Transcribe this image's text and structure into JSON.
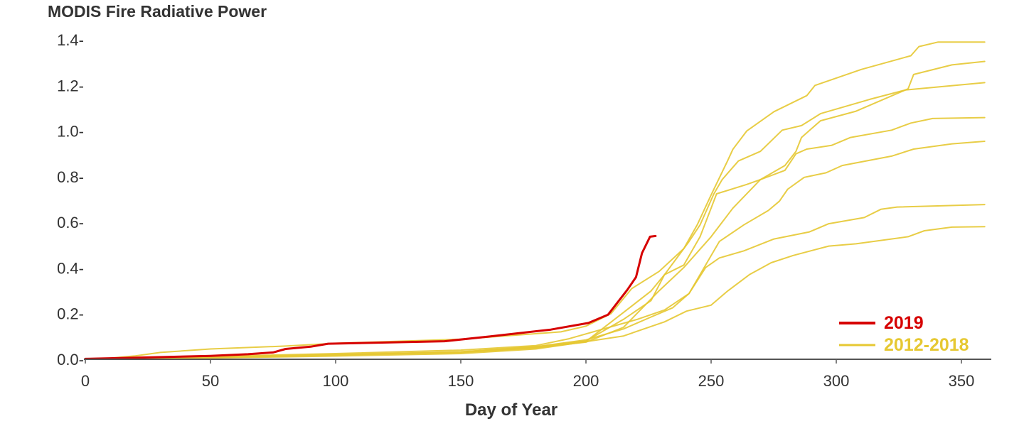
{
  "chart_data": {
    "type": "line",
    "title": "MODIS Fire Radiative Power",
    "xlabel": "Day of Year",
    "ylabel": "",
    "xlim": [
      0,
      362
    ],
    "ylim": [
      0,
      1.4
    ],
    "grid": false,
    "legend_position": "bottom-right",
    "x_ticks": [
      0,
      50,
      100,
      150,
      200,
      250,
      300,
      350
    ],
    "x_tick_labels": [
      "0",
      "50",
      "100",
      "150",
      "200",
      "250",
      "300",
      "350"
    ],
    "y_ticks": [
      0,
      0.2,
      0.4,
      0.6,
      0.8,
      1.0,
      1.2,
      1.4
    ],
    "y_tick_labels": [
      "0.0-",
      "0.2-",
      "0.4-",
      "0.6-",
      "0.8-",
      "1.0-",
      "1.2-",
      "1.4-"
    ],
    "colors": {
      "2019": "#d60000",
      "2012-2018": "#e6c832",
      "axis": "#555555",
      "text": "#333333"
    },
    "legend": [
      {
        "label": "2019",
        "color_key": "2019"
      },
      {
        "label": "2012-2018",
        "color_key": "2012-2018"
      }
    ],
    "series": [
      {
        "name": "2012-2018 A",
        "group": "2012-2018",
        "points": [
          [
            0,
            0
          ],
          [
            10,
            0.005
          ],
          [
            20,
            0.015
          ],
          [
            30,
            0.03
          ],
          [
            50,
            0.045
          ],
          [
            80,
            0.058
          ],
          [
            100,
            0.07
          ],
          [
            150,
            0.088
          ],
          [
            190,
            0.12
          ],
          [
            200,
            0.145
          ],
          [
            210,
            0.2
          ],
          [
            218.3,
            0.31
          ],
          [
            229.2,
            0.385
          ],
          [
            239.1,
            0.485
          ],
          [
            244.5,
            0.59
          ],
          [
            250,
            0.72
          ],
          [
            256.6,
            0.87
          ],
          [
            258.7,
            0.92
          ],
          [
            264.2,
            1.0
          ],
          [
            275.1,
            1.085
          ],
          [
            288.2,
            1.155
          ],
          [
            291.5,
            1.2
          ],
          [
            310,
            1.27
          ],
          [
            329.8,
            1.33
          ],
          [
            333,
            1.37
          ],
          [
            340.7,
            1.39
          ],
          [
            359.3,
            1.39
          ]
        ]
      },
      {
        "name": "2012-2018 B",
        "group": "2012-2018",
        "points": [
          [
            0,
            0
          ],
          [
            50,
            0.008
          ],
          [
            100,
            0.018
          ],
          [
            150,
            0.03
          ],
          [
            180,
            0.05
          ],
          [
            200,
            0.075
          ],
          [
            215,
            0.14
          ],
          [
            229.2,
            0.3
          ],
          [
            239.1,
            0.402
          ],
          [
            250,
            0.537
          ],
          [
            258.7,
            0.662
          ],
          [
            269.7,
            0.787
          ],
          [
            279.5,
            0.849
          ],
          [
            283.9,
            0.911
          ],
          [
            286.1,
            0.972
          ],
          [
            293.7,
            1.045
          ],
          [
            307.9,
            1.087
          ],
          [
            328.7,
            1.185
          ],
          [
            330.9,
            1.248
          ],
          [
            346.2,
            1.29
          ],
          [
            359.3,
            1.305
          ]
        ]
      },
      {
        "name": "2012-2018 C",
        "group": "2012-2018",
        "points": [
          [
            0,
            0
          ],
          [
            50,
            0.01
          ],
          [
            100,
            0.02
          ],
          [
            150,
            0.032
          ],
          [
            180,
            0.055
          ],
          [
            200,
            0.08
          ],
          [
            215,
            0.175
          ],
          [
            226,
            0.257
          ],
          [
            231.4,
            0.371
          ],
          [
            241.2,
            0.516
          ],
          [
            245.6,
            0.589
          ],
          [
            251.1,
            0.725
          ],
          [
            254.4,
            0.787
          ],
          [
            260.9,
            0.869
          ],
          [
            269.7,
            0.911
          ],
          [
            278.4,
            1.004
          ],
          [
            286.1,
            1.024
          ],
          [
            293.7,
            1.076
          ],
          [
            313.4,
            1.139
          ],
          [
            327.6,
            1.18
          ],
          [
            359.3,
            1.212
          ]
        ]
      },
      {
        "name": "2012-2018 D",
        "group": "2012-2018",
        "points": [
          [
            0,
            0
          ],
          [
            50,
            0.009
          ],
          [
            100,
            0.019
          ],
          [
            150,
            0.03
          ],
          [
            180,
            0.05
          ],
          [
            200,
            0.078
          ],
          [
            215,
            0.205
          ],
          [
            226,
            0.299
          ],
          [
            231.4,
            0.371
          ],
          [
            239.1,
            0.413
          ],
          [
            245.6,
            0.537
          ],
          [
            250,
            0.662
          ],
          [
            252.2,
            0.725
          ],
          [
            264.2,
            0.766
          ],
          [
            269.7,
            0.787
          ],
          [
            279.5,
            0.828
          ],
          [
            283.9,
            0.9
          ],
          [
            288.2,
            0.921
          ],
          [
            298.1,
            0.937
          ],
          [
            305.7,
            0.972
          ],
          [
            322.1,
            1.004
          ],
          [
            329.8,
            1.035
          ],
          [
            338.5,
            1.055
          ],
          [
            359.3,
            1.059
          ]
        ]
      },
      {
        "name": "2012-2018 E",
        "group": "2012-2018",
        "points": [
          [
            0,
            0
          ],
          [
            50,
            0.012
          ],
          [
            100,
            0.025
          ],
          [
            150,
            0.04
          ],
          [
            180,
            0.06
          ],
          [
            193.2,
            0.09
          ],
          [
            220.5,
            0.175
          ],
          [
            231.4,
            0.216
          ],
          [
            241.2,
            0.288
          ],
          [
            247.8,
            0.413
          ],
          [
            253.3,
            0.516
          ],
          [
            263.1,
            0.589
          ],
          [
            272.9,
            0.652
          ],
          [
            277.3,
            0.693
          ],
          [
            280.6,
            0.745
          ],
          [
            287.2,
            0.797
          ],
          [
            295.9,
            0.817
          ],
          [
            302.4,
            0.849
          ],
          [
            322.1,
            0.89
          ],
          [
            330.9,
            0.921
          ],
          [
            346.2,
            0.944
          ],
          [
            359.3,
            0.955
          ]
        ]
      },
      {
        "name": "2012-2018 F",
        "group": "2012-2018",
        "points": [
          [
            0,
            0
          ],
          [
            50,
            0.01
          ],
          [
            100,
            0.02
          ],
          [
            150,
            0.033
          ],
          [
            180,
            0.055
          ],
          [
            200,
            0.085
          ],
          [
            215,
            0.133
          ],
          [
            226,
            0.185
          ],
          [
            234.7,
            0.226
          ],
          [
            241.2,
            0.288
          ],
          [
            247.8,
            0.402
          ],
          [
            253.3,
            0.444
          ],
          [
            263.1,
            0.475
          ],
          [
            275.1,
            0.527
          ],
          [
            289.3,
            0.558
          ],
          [
            297,
            0.594
          ],
          [
            311.2,
            0.621
          ],
          [
            317.8,
            0.657
          ],
          [
            324.3,
            0.667
          ],
          [
            359.3,
            0.678
          ]
        ]
      },
      {
        "name": "2012-2018 G",
        "group": "2012-2018",
        "points": [
          [
            0,
            0
          ],
          [
            50,
            0.006
          ],
          [
            100,
            0.014
          ],
          [
            150,
            0.025
          ],
          [
            180,
            0.045
          ],
          [
            193.2,
            0.066
          ],
          [
            215,
            0.102
          ],
          [
            231.4,
            0.164
          ],
          [
            240.2,
            0.211
          ],
          [
            250,
            0.237
          ],
          [
            256.6,
            0.299
          ],
          [
            265.3,
            0.371
          ],
          [
            274,
            0.423
          ],
          [
            282.8,
            0.455
          ],
          [
            297,
            0.496
          ],
          [
            307.9,
            0.506
          ],
          [
            328.7,
            0.537
          ],
          [
            335.2,
            0.563
          ],
          [
            346.2,
            0.579
          ],
          [
            359.3,
            0.581
          ]
        ]
      },
      {
        "name": "2019",
        "group": "2019",
        "points": [
          [
            0,
            0.002
          ],
          [
            25,
            0.008
          ],
          [
            50,
            0.015
          ],
          [
            65,
            0.022
          ],
          [
            75,
            0.03
          ],
          [
            80,
            0.045
          ],
          [
            90,
            0.055
          ],
          [
            97,
            0.068
          ],
          [
            143.5,
            0.079
          ],
          [
            161.6,
            0.1
          ],
          [
            186,
            0.13
          ],
          [
            201,
            0.159
          ],
          [
            208.8,
            0.195
          ],
          [
            216.5,
            0.304
          ],
          [
            220,
            0.36
          ],
          [
            222.4,
            0.465
          ],
          [
            225.6,
            0.537
          ],
          [
            227.8,
            0.54
          ]
        ]
      }
    ]
  }
}
